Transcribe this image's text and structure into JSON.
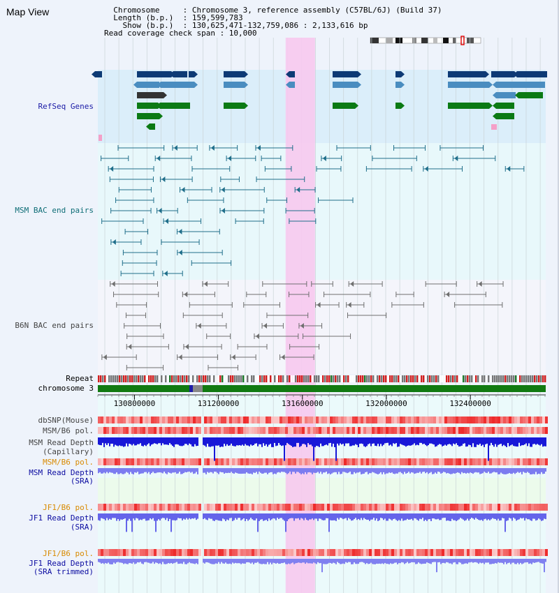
{
  "header": {
    "title": "Map View",
    "info_lines": [
      "  Chromosome     : Chromosome 3, reference assembly (C57BL/6J) (Build 37)",
      "  Length (b.p.)  : 159,599,783",
      "    Show (b.p.)  : 130,625,471-132,759,086 : 2,133,616 bp",
      "Read coverage check span : 10,000"
    ]
  },
  "tracks": {
    "refseq": "RefSeq Genes",
    "msm_bac": "MSM BAC end pairs",
    "b6n_bac": "B6N BAC end pairs",
    "repeat": "Repeat",
    "chromosome": "chromosome 3",
    "dbsnp": "dbSNP(Mouse)",
    "msm_pol_1": "MSM/B6 pol.",
    "msm_depth_cap_1": "MSM Read Depth",
    "msm_depth_cap_2": "(Capillary)",
    "msm_pol_2": "MSM/B6 pol.",
    "msm_depth_sra_1": "MSM Read Depth",
    "msm_depth_sra_2": "(SRA)",
    "jf1_pol_1": "JF1/B6 pol.",
    "jf1_depth_sra_1": "JF1 Read Depth",
    "jf1_depth_sra_2": "(SRA)",
    "jf1_pol_2": "JF1/B6 pol.",
    "jf1_depth_trim_1": "JF1 Read Depth",
    "jf1_depth_trim_2": "(SRA trimmed)"
  },
  "axis": {
    "range_bp": [
      130625471,
      132759086
    ],
    "ticks": [
      "130800000",
      "131200000",
      "131600000",
      "132000000",
      "132400000"
    ]
  },
  "highlight_bp": [
    131520000,
    131660000
  ],
  "colors": {
    "refseq_bg": "#dbeefa",
    "msm_bg": "#e8f8fb",
    "b6n_bg": "#f4f5fb",
    "gene_dark": "#0d3a75",
    "gene_mid": "#4a8dc0",
    "gene_green": "#0b7a14",
    "msm_pair": "#1f6e8a",
    "b6n_pair": "#6f6f6f",
    "highlight": "#f7c9ee",
    "chromosome_bar": "#117a11",
    "label_default": "#000000",
    "label_refseq": "#1a1aa6",
    "label_msm": "#0e6d76",
    "label_b6n": "#444444",
    "label_sra": "#0a0aa0",
    "label_orange": "#d88a00"
  }
}
